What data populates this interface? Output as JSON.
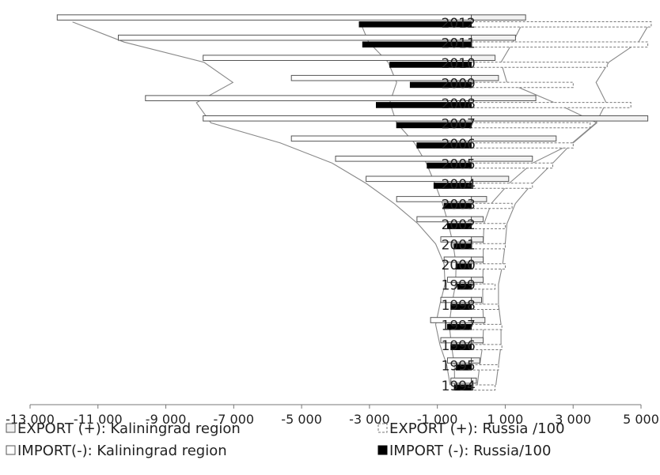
{
  "chart_data": {
    "type": "bar",
    "orientation": "horizontal",
    "categories": [
      "1994",
      "1995",
      "1996",
      "1997",
      "1998",
      "1999",
      "2000",
      "2001",
      "2002",
      "2003",
      "2004",
      "2005",
      "2006",
      "2007",
      "2008",
      "2009",
      "2010",
      "2011",
      "2012"
    ],
    "xlim": [
      -13000,
      5400
    ],
    "xticks": [
      -13000,
      -11000,
      -9000,
      -7000,
      -5000,
      -3000,
      -1000,
      1000,
      3000,
      5000
    ],
    "xtick_labels": [
      "-13 000",
      "-11 000",
      "-9 000",
      "-7 000",
      "-5 000",
      "-3 000",
      "-1 000",
      "1 000",
      "3 000",
      "5 000"
    ],
    "grid": false,
    "legend_position": "bottom",
    "series": [
      {
        "name": "EXPORT (+): Kaliningrad region",
        "style": "gray-hollow",
        "values": [
          150,
          250,
          350,
          400,
          300,
          350,
          350,
          350,
          350,
          450,
          1100,
          1800,
          2500,
          5200,
          1900,
          800,
          700,
          1300,
          1600
        ]
      },
      {
        "name": "IMPORT(-):  Kaliningrad region",
        "style": "hollow",
        "values": [
          -600,
          -700,
          -900,
          -1200,
          -900,
          -700,
          -800,
          -900,
          -1600,
          -2200,
          -3100,
          -4000,
          -5300,
          -7900,
          -9600,
          -5300,
          -7900,
          -10400,
          -12200
        ]
      },
      {
        "name": "EXPORT (+): Russia /100",
        "style": "dotted",
        "values": [
          700,
          800,
          900,
          900,
          800,
          700,
          1000,
          1000,
          1000,
          1200,
          1800,
          2400,
          3000,
          3500,
          4700,
          3000,
          4000,
          5200,
          5300
        ]
      },
      {
        "name": "IMPORT (-): Russia/100",
        "style": "solid-black",
        "values": [
          -500,
          -450,
          -600,
          -700,
          -600,
          -400,
          -450,
          -500,
          -700,
          -800,
          -1100,
          -1300,
          -1600,
          -2200,
          -2800,
          -1800,
          -2400,
          -3200,
          -3300
        ]
      }
    ],
    "legend": [
      {
        "label": "EXPORT (+): Kaliningrad region",
        "style": "gray-hollow"
      },
      {
        "label": "EXPORT (+): Russia /100",
        "style": "dotted"
      },
      {
        "label": "IMPORT(-):  Kaliningrad region",
        "style": "hollow"
      },
      {
        "label": "IMPORT (-): Russia/100",
        "style": "solid-black"
      }
    ]
  }
}
